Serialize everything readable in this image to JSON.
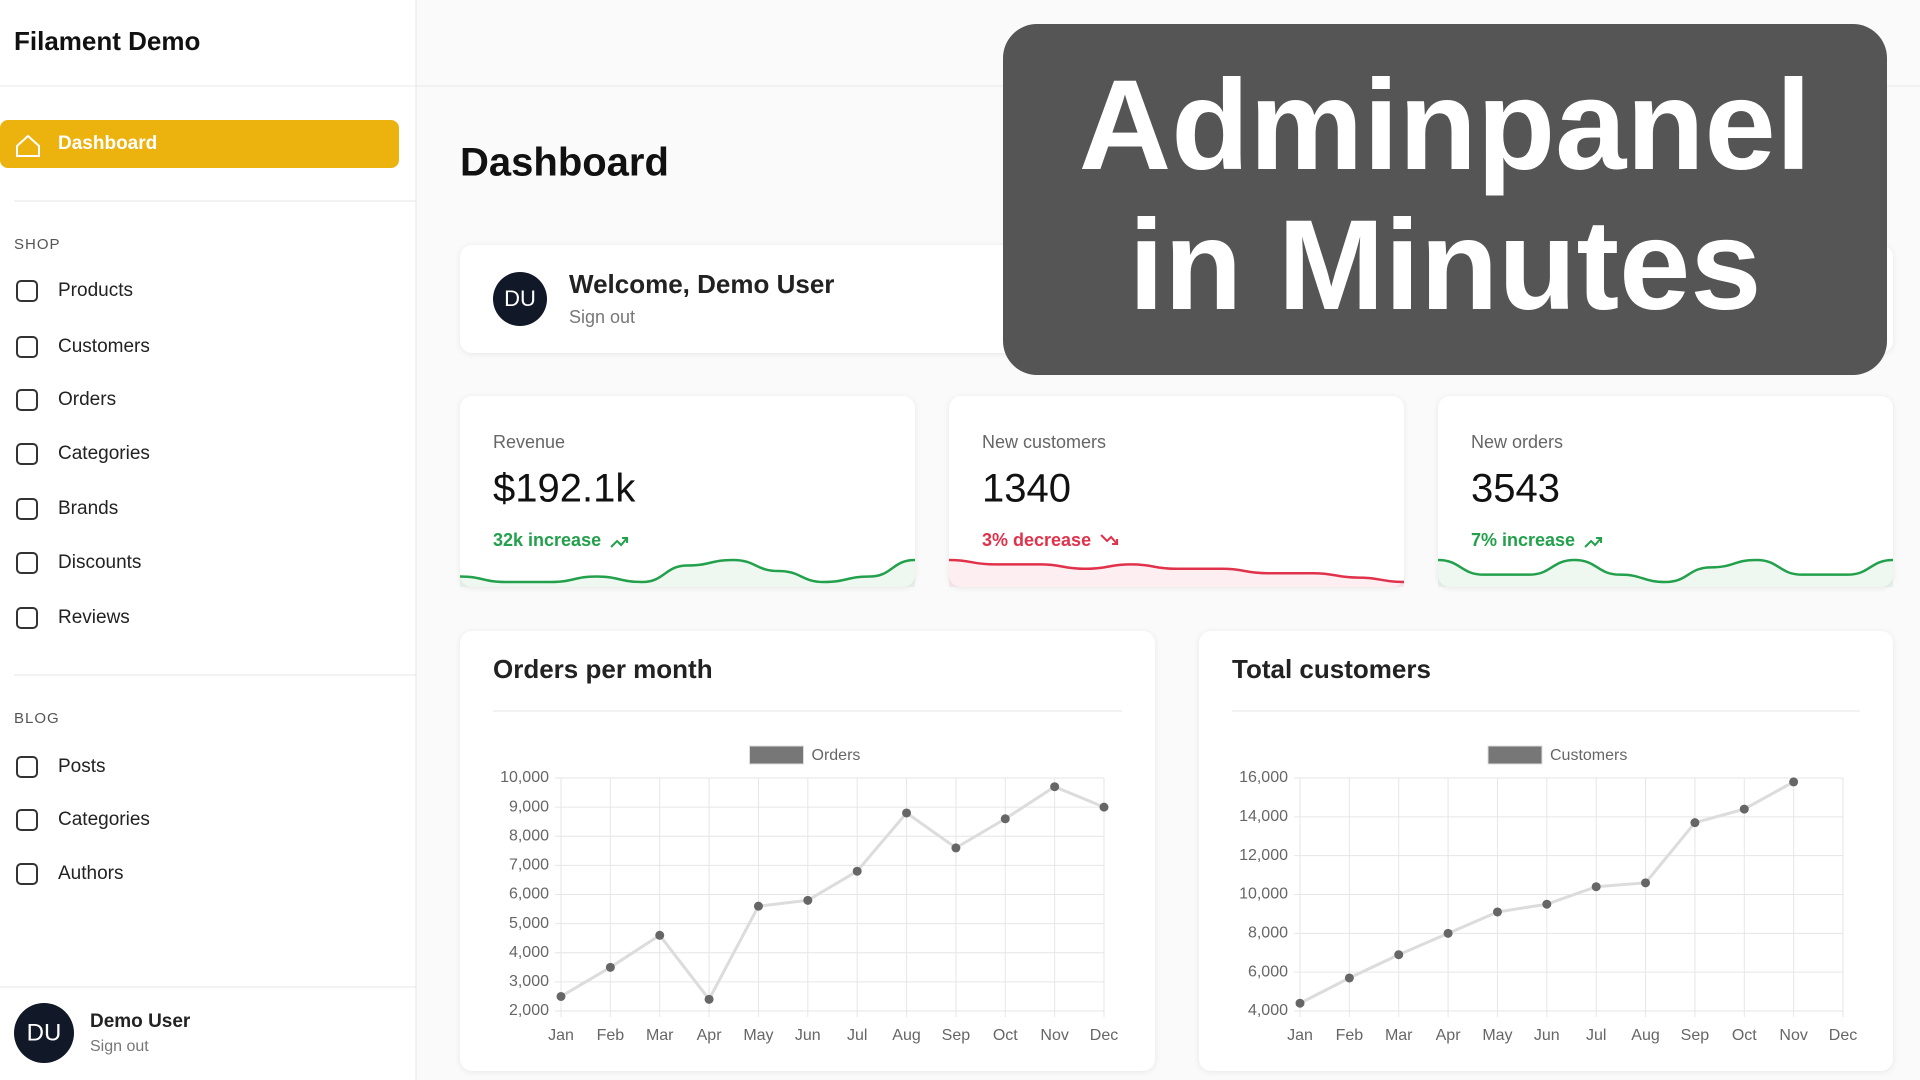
{
  "sidebar": {
    "brand": "Filament Demo",
    "active": "Dashboard",
    "sections": [
      {
        "label": "SHOP",
        "items": [
          "Products",
          "Customers",
          "Orders",
          "Categories",
          "Brands",
          "Discounts",
          "Reviews"
        ]
      },
      {
        "label": "BLOG",
        "items": [
          "Posts",
          "Categories",
          "Authors"
        ]
      }
    ],
    "user": {
      "initials": "DU",
      "name": "Demo User",
      "action": "Sign out"
    }
  },
  "page": {
    "title": "Dashboard"
  },
  "welcome": {
    "initials": "DU",
    "title": "Welcome, Demo User",
    "action": "Sign out"
  },
  "overlay": {
    "lines": [
      "Adminpanel",
      "in Minutes"
    ]
  },
  "stats": [
    {
      "label": "Revenue",
      "value": "$192.1k",
      "change": "32k increase",
      "trend": "up",
      "color": "#22a04b",
      "sparkline": [
        3,
        2,
        2,
        3,
        2,
        5,
        6,
        4,
        2,
        3,
        6
      ]
    },
    {
      "label": "New customers",
      "value": "1340",
      "change": "3% decrease",
      "trend": "down",
      "color": "#e0324b",
      "sparkline": [
        8,
        7,
        7,
        6,
        7,
        6,
        6,
        5,
        5,
        4,
        3
      ]
    },
    {
      "label": "New orders",
      "value": "3543",
      "change": "7% increase",
      "trend": "up",
      "color": "#22a04b",
      "sparkline": [
        5,
        3,
        3,
        5,
        3,
        2,
        4,
        5,
        3,
        3,
        5
      ]
    }
  ],
  "chart_data": [
    {
      "type": "line",
      "title": "Orders per month",
      "categories": [
        "Jan",
        "Feb",
        "Mar",
        "Apr",
        "May",
        "Jun",
        "Jul",
        "Aug",
        "Sep",
        "Oct",
        "Nov",
        "Dec"
      ],
      "series": [
        {
          "name": "Orders",
          "color": "#dcdcdc",
          "values": [
            2500,
            3500,
            4600,
            2400,
            5600,
            5800,
            6800,
            8800,
            7600,
            8600,
            9700,
            9000
          ]
        }
      ],
      "ylim": [
        2000,
        10000
      ],
      "yticks": [
        {
          "value": 2000,
          "label": "2,000"
        },
        {
          "value": 3000,
          "label": "3,000"
        },
        {
          "value": 4000,
          "label": "4,000"
        },
        {
          "value": 5000,
          "label": "5,000"
        },
        {
          "value": 6000,
          "label": "6,000"
        },
        {
          "value": 7000,
          "label": "7,000"
        },
        {
          "value": 8000,
          "label": "8,000"
        },
        {
          "value": 9000,
          "label": "9,000"
        },
        {
          "value": 10000,
          "label": "10,000"
        }
      ],
      "grid": true
    },
    {
      "type": "line",
      "title": "Total customers",
      "categories": [
        "Jan",
        "Feb",
        "Mar",
        "Apr",
        "May",
        "Jun",
        "Jul",
        "Aug",
        "Sep",
        "Oct",
        "Nov",
        "Dec"
      ],
      "series": [
        {
          "name": "Customers",
          "color": "#dcdcdc",
          "values": [
            4400,
            5700,
            6900,
            8000,
            9100,
            9500,
            10400,
            10600,
            13700,
            14400,
            15800,
            null
          ]
        }
      ],
      "ylim": [
        4000,
        16000
      ],
      "yticks": [
        {
          "value": 4000,
          "label": "4,000"
        },
        {
          "value": 6000,
          "label": "6,000"
        },
        {
          "value": 8000,
          "label": "8,000"
        },
        {
          "value": 10000,
          "label": "10,000"
        },
        {
          "value": 12000,
          "label": "12,000"
        },
        {
          "value": 14000,
          "label": "14,000"
        },
        {
          "value": 16000,
          "label": "16,000"
        }
      ],
      "grid": true
    }
  ]
}
